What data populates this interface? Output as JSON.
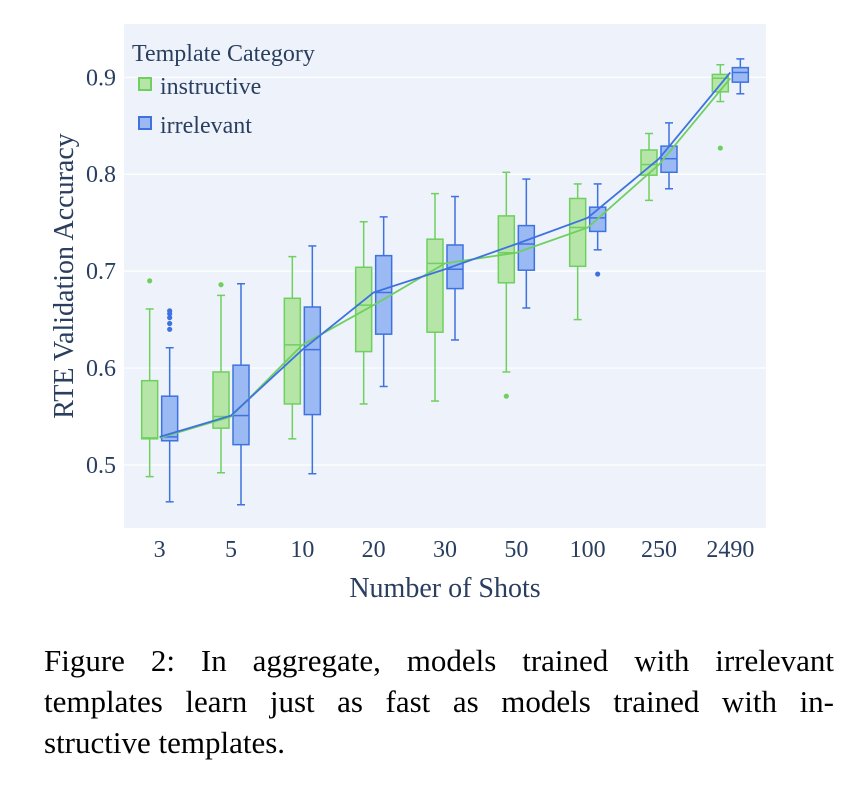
{
  "chart_data": {
    "type": "box",
    "xlabel": "Number of Shots",
    "ylabel": "RTE Validation Accuracy",
    "categories": [
      "3",
      "5",
      "10",
      "20",
      "30",
      "50",
      "100",
      "250",
      "2490"
    ],
    "ylim": [
      0.435,
      0.955
    ],
    "yticks": [
      0.5,
      0.6,
      0.7,
      0.8,
      0.9
    ],
    "ytick_labels": [
      "0.5",
      "0.6",
      "0.7",
      "0.8",
      "0.9"
    ],
    "grid": true,
    "legend": {
      "title": "Template Category",
      "position": "top-left"
    },
    "series": [
      {
        "name": "instructive",
        "color": "#6fcf5f",
        "fill": "#b5e6a8",
        "boxes": [
          {
            "min": 0.488,
            "q1": 0.527,
            "median": 0.528,
            "q3": 0.587,
            "max": 0.661,
            "outliers": [
              0.69
            ]
          },
          {
            "min": 0.492,
            "q1": 0.538,
            "median": 0.55,
            "q3": 0.596,
            "max": 0.675,
            "outliers": [
              0.686
            ]
          },
          {
            "min": 0.527,
            "q1": 0.563,
            "median": 0.624,
            "q3": 0.672,
            "max": 0.715,
            "outliers": []
          },
          {
            "min": 0.563,
            "q1": 0.617,
            "median": 0.665,
            "q3": 0.704,
            "max": 0.751,
            "outliers": []
          },
          {
            "min": 0.566,
            "q1": 0.637,
            "median": 0.708,
            "q3": 0.733,
            "max": 0.78,
            "outliers": []
          },
          {
            "min": 0.596,
            "q1": 0.688,
            "median": 0.719,
            "q3": 0.757,
            "max": 0.802,
            "outliers": [
              0.571
            ]
          },
          {
            "min": 0.65,
            "q1": 0.705,
            "median": 0.745,
            "q3": 0.775,
            "max": 0.79,
            "outliers": []
          },
          {
            "min": 0.773,
            "q1": 0.799,
            "median": 0.81,
            "q3": 0.825,
            "max": 0.842,
            "outliers": []
          },
          {
            "min": 0.875,
            "q1": 0.885,
            "median": 0.899,
            "q3": 0.903,
            "max": 0.913,
            "outliers": [
              0.827
            ]
          }
        ],
        "means": [
          0.528,
          0.55,
          0.624,
          0.665,
          0.708,
          0.719,
          0.745,
          0.81,
          0.899
        ]
      },
      {
        "name": "irrelevant",
        "color": "#3e72e0",
        "fill": "#9bb9f2",
        "boxes": [
          {
            "min": 0.462,
            "q1": 0.525,
            "median": 0.529,
            "q3": 0.571,
            "max": 0.621,
            "outliers": [
              0.64,
              0.646,
              0.652,
              0.656,
              0.659
            ]
          },
          {
            "min": 0.459,
            "q1": 0.521,
            "median": 0.551,
            "q3": 0.603,
            "max": 0.687,
            "outliers": []
          },
          {
            "min": 0.491,
            "q1": 0.552,
            "median": 0.619,
            "q3": 0.663,
            "max": 0.726,
            "outliers": []
          },
          {
            "min": 0.581,
            "q1": 0.635,
            "median": 0.678,
            "q3": 0.716,
            "max": 0.756,
            "outliers": []
          },
          {
            "min": 0.629,
            "q1": 0.682,
            "median": 0.702,
            "q3": 0.727,
            "max": 0.777,
            "outliers": []
          },
          {
            "min": 0.662,
            "q1": 0.701,
            "median": 0.728,
            "q3": 0.747,
            "max": 0.795,
            "outliers": []
          },
          {
            "min": 0.722,
            "q1": 0.741,
            "median": 0.755,
            "q3": 0.766,
            "max": 0.79,
            "outliers": [
              0.697
            ]
          },
          {
            "min": 0.785,
            "q1": 0.802,
            "median": 0.816,
            "q3": 0.829,
            "max": 0.853,
            "outliers": []
          },
          {
            "min": 0.883,
            "q1": 0.895,
            "median": 0.905,
            "q3": 0.91,
            "max": 0.919,
            "outliers": []
          }
        ],
        "means": [
          0.529,
          0.551,
          0.619,
          0.678,
          0.702,
          0.728,
          0.755,
          0.816,
          0.905
        ]
      }
    ]
  },
  "caption": {
    "lines": [
      "Figure 2: In aggregate, models trained with irrelevant",
      "templates learn just as fast as models trained with in-",
      "structive templates."
    ]
  }
}
